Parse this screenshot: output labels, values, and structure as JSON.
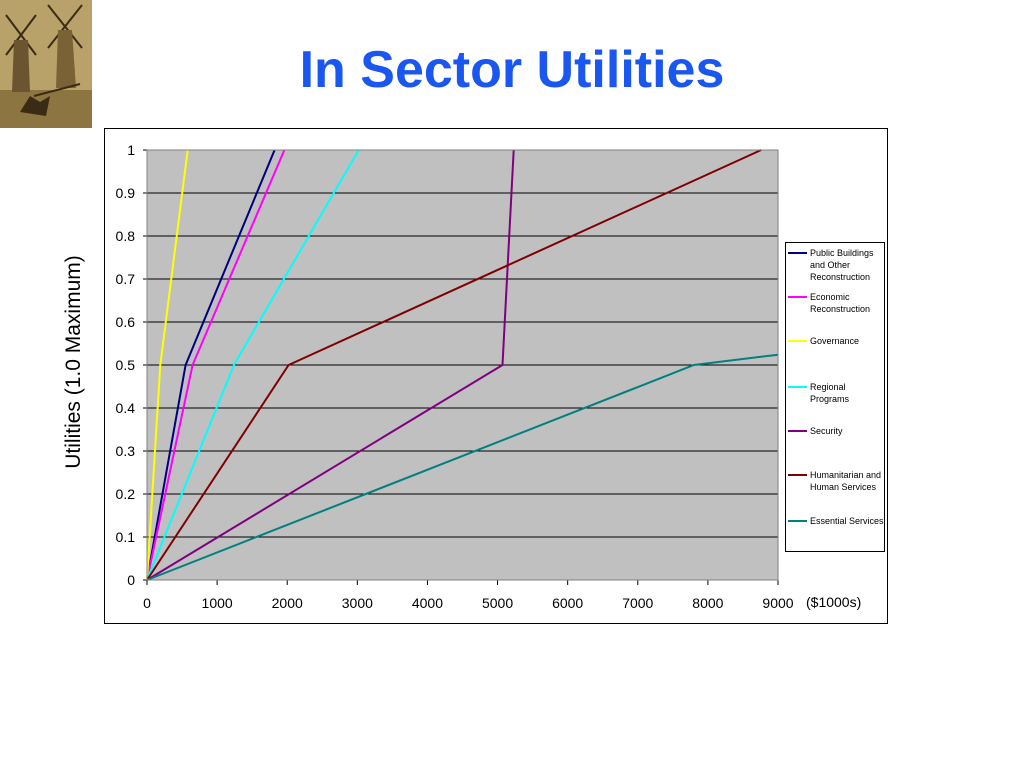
{
  "slide": {
    "title": "In Sector Utilities",
    "logo_icon": "windmills-knight-icon"
  },
  "chart_data": {
    "type": "line",
    "title": "",
    "xlabel": "",
    "x_unit_label": "($1000s)",
    "ylabel": "Utilities (1.0 Maximum)",
    "xlim": [
      0,
      9000
    ],
    "ylim": [
      0,
      1
    ],
    "x_ticks": [
      "0",
      "1000",
      "2000",
      "3000",
      "4000",
      "5000",
      "6000",
      "7000",
      "8000",
      "9000"
    ],
    "y_ticks": [
      "0",
      "0.1",
      "0.2",
      "0.3",
      "0.4",
      "0.5",
      "0.6",
      "0.7",
      "0.8",
      "0.9",
      "1"
    ],
    "plot_background": "#c0c0c0",
    "grid": "horizontal",
    "legend_position": "right",
    "series": [
      {
        "name": "Public Buildings and Other Reconstruction",
        "color": "#000080",
        "x": [
          0,
          550,
          1820
        ],
        "y": [
          0,
          0.5,
          1.0
        ]
      },
      {
        "name": "Economic Reconstruction",
        "color": "#ff00ff",
        "x": [
          0,
          650,
          1960
        ],
        "y": [
          0,
          0.5,
          1.0
        ]
      },
      {
        "name": "Governance",
        "color": "#ffff00",
        "x": [
          0,
          190,
          580
        ],
        "y": [
          0,
          0.5,
          1.0
        ]
      },
      {
        "name": "Regional Programs",
        "color": "#00ffff",
        "x": [
          0,
          1240,
          3020
        ],
        "y": [
          0,
          0.5,
          1.0
        ]
      },
      {
        "name": "Security",
        "color": "#800080",
        "x": [
          0,
          5070,
          5230
        ],
        "y": [
          0,
          0.5,
          1.0
        ]
      },
      {
        "name": "Humanitarian and Human Services",
        "color": "#800000",
        "x": [
          0,
          2020,
          8760
        ],
        "y": [
          0,
          0.5,
          1.0
        ]
      },
      {
        "name": "Essential Services",
        "color": "#008080",
        "x": [
          0,
          7800,
          9000
        ],
        "y": [
          0,
          0.5,
          0.524
        ]
      }
    ]
  }
}
